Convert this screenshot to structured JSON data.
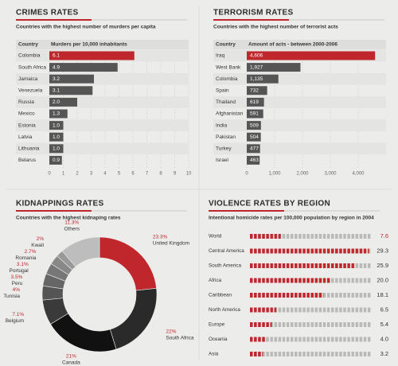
{
  "chart_data": [
    {
      "type": "bar",
      "title": "CRIMES RATES",
      "subtitle": "Countries with the highest number of murders per capita",
      "category_header": "Country",
      "xlabel": "Murders per 10,000 inhabitants",
      "categories": [
        "Colombia",
        "South Africa",
        "Jamaica",
        "Venezuela",
        "Russia",
        "Mexico",
        "Estonia",
        "Latvia",
        "Lithuania",
        "Belarus"
      ],
      "values": [
        6.1,
        4.9,
        3.2,
        3.1,
        2.0,
        1.3,
        1.0,
        1.0,
        1.0,
        0.9
      ],
      "value_labels": [
        "6.1",
        "4.9",
        "3.2",
        "3.1",
        "2.0",
        "1.3",
        "1.0",
        "1.0",
        "1.0",
        "0.9"
      ],
      "colors": [
        "#c0272d",
        "#555555",
        "#555555",
        "#555555",
        "#555555",
        "#555555",
        "#555555",
        "#555555",
        "#555555",
        "#555555"
      ],
      "xlim": [
        0,
        10
      ],
      "xticks": [
        0,
        1,
        2,
        3,
        4,
        5,
        6,
        7,
        8,
        9,
        10
      ],
      "grid": true
    },
    {
      "type": "bar",
      "title": "TERRORISM RATES",
      "subtitle": "Countries with the highest number of terrorist acts",
      "category_header": "Country",
      "xlabel": "Amount of acts - between 2000-2006",
      "categories": [
        "Iraq",
        "West Bank",
        "Colombia",
        "Spain",
        "Thailand",
        "Afghanistan",
        "India",
        "Pakistan",
        "Turkey",
        "Israel"
      ],
      "values": [
        4606,
        1927,
        1135,
        732,
        619,
        591,
        509,
        504,
        477,
        463
      ],
      "value_labels": [
        "4,606",
        "1,927",
        "1,135",
        "732",
        "619",
        "591",
        "509",
        "504",
        "477",
        "463"
      ],
      "colors": [
        "#c0272d",
        "#555555",
        "#555555",
        "#555555",
        "#555555",
        "#555555",
        "#555555",
        "#555555",
        "#555555",
        "#555555"
      ],
      "xlim": [
        0,
        5000
      ],
      "xticks": [
        0,
        {
          "value": 1000,
          "label": "1,000"
        },
        {
          "value": 2000,
          "label": "2,000"
        },
        {
          "value": 3000,
          "label": "3,000"
        },
        {
          "value": 4000,
          "label": "4,000"
        }
      ],
      "grid": true
    },
    {
      "type": "pie",
      "donut": true,
      "title": "KIDNAPPINGS RATES",
      "subtitle": "Countries with the highest kidnaping rates",
      "categories": [
        "United Kingdom",
        "South Africa",
        "Canada",
        "Belgium",
        "Tunisia",
        "Peru",
        "Portugal",
        "Romania",
        "Kwait",
        "Others"
      ],
      "values": [
        23.3,
        22,
        21,
        7.1,
        4,
        3.5,
        3.1,
        2.7,
        2,
        11.3
      ],
      "value_labels": [
        "23.3%",
        "22%",
        "21%",
        "7.1%",
        "4%",
        "3.5%",
        "3.1%",
        "2.7%",
        "2%",
        "11.3%"
      ],
      "colors": [
        "#c0272d",
        "#2a2a2a",
        "#111111",
        "#3a3a3a",
        "#555555",
        "#666666",
        "#777777",
        "#888888",
        "#999999",
        "#bdbdbd"
      ]
    },
    {
      "type": "dotbar",
      "title": "VIOLENCE RATES BY REGION",
      "subtitle": "Intentional homicide rates per 100,000 population by region in 2004",
      "categories": [
        "World",
        "Central America",
        "South America",
        "Africa",
        "Caribbean",
        "North America",
        "Europe",
        "Oceania",
        "Asia"
      ],
      "values": [
        7.6,
        29.3,
        25.9,
        20.0,
        18.1,
        6.5,
        5.4,
        4.0,
        3.2
      ],
      "value_labels": [
        "7.6",
        "29.3",
        "25.9",
        "20.0",
        "18.1",
        "6.5",
        "5.4",
        "4.0",
        "3.2"
      ],
      "color": "#c0272d",
      "xlim": [
        0,
        30
      ]
    }
  ]
}
